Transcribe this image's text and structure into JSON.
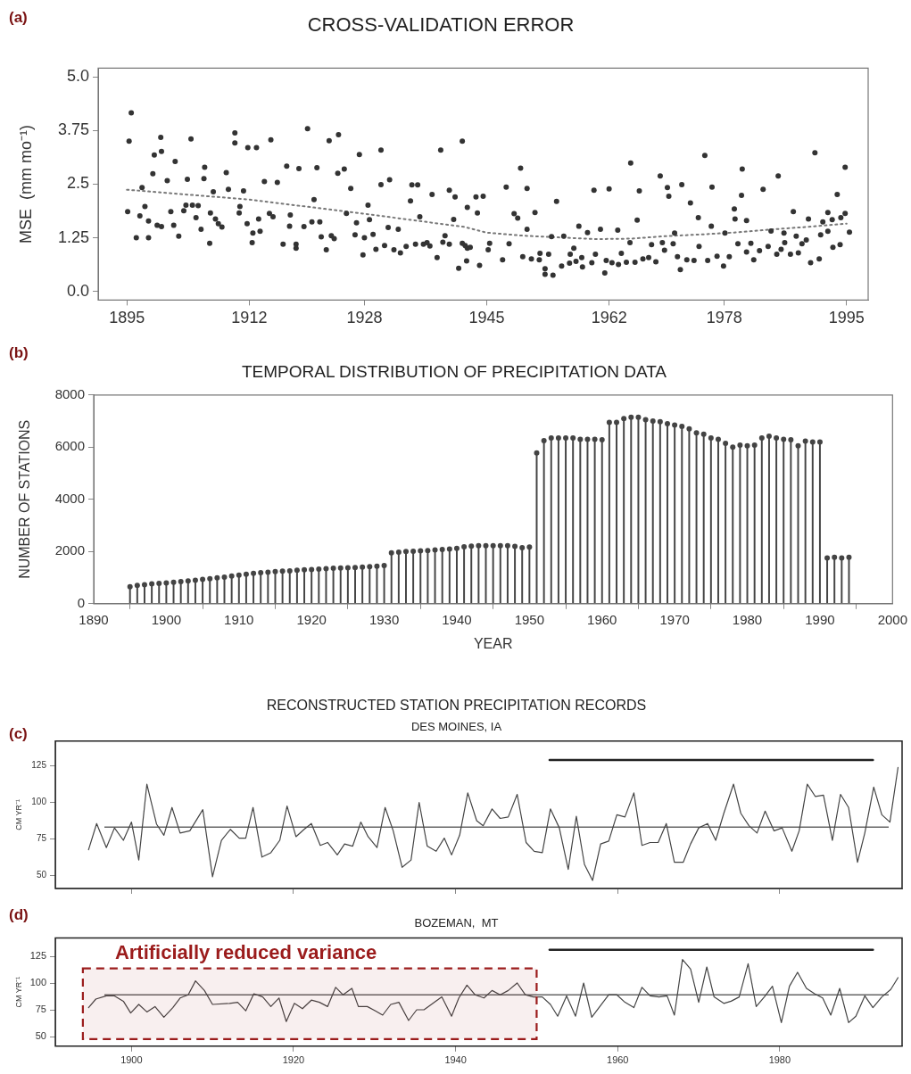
{
  "chart_data": [
    {
      "type": "scatter",
      "title": "CROSS-VALIDATION ERROR",
      "ylabel": "MSE  (mm mo⁻¹)",
      "annotations": [
        "(a)"
      ],
      "marker": "circle",
      "xlim": [
        1891,
        1998
      ],
      "xticks": [
        1895,
        1912,
        1928,
        1945,
        1962,
        1978,
        1995
      ],
      "ylim": [
        -0.2,
        5.2
      ],
      "yticks": [
        {
          "value": 0,
          "label": "0.0"
        },
        1.25,
        2.5,
        3.75,
        {
          "value": 5,
          "label": "5.0"
        }
      ],
      "series": [
        {
          "color": "#333333",
          "x": [
            1895.6,
            1895.3,
            1895.1,
            1896.8,
            1896.3,
            1897.5,
            1898.0,
            1898.0,
            1897.1,
            1898.6,
            1898.8,
            1899.7,
            1899.8,
            1899.2,
            1899.8,
            1900.6,
            1901.1,
            1901.5,
            1901.7,
            1902.2,
            1902.9,
            1903.2,
            1903.4,
            1903.9,
            1904.1,
            1904.6,
            1904.9,
            1905.3,
            1905.7,
            1905.8,
            1906.5,
            1906.6,
            1907.0,
            1907.3,
            1907.7,
            1908.2,
            1908.8,
            1909.1,
            1910.0,
            1910.0,
            1910.7,
            1910.6,
            1911.2,
            1911.7,
            1911.8,
            1912.4,
            1912.5,
            1913.0,
            1913.3,
            1913.5,
            1914.1,
            1914.8,
            1915.0,
            1915.3,
            1915.9,
            1916.7,
            1917.2,
            1917.6,
            1917.7,
            1918.5,
            1918.5,
            1918.9,
            1919.6,
            1920.1,
            1920.7,
            1921.0,
            1921.4,
            1921.8,
            1922.0,
            1922.7,
            1923.1,
            1923.4,
            1923.8,
            1924.3,
            1924.4,
            1925.2,
            1925.5,
            1926.1,
            1926.7,
            1926.9,
            1927.3,
            1927.8,
            1928.0,
            1928.5,
            1928.7,
            1929.2,
            1929.6,
            1930.3,
            1930.3,
            1930.8,
            1931.3,
            1931.5,
            1932.1,
            1932.7,
            1933.0,
            1933.8,
            1934.4,
            1934.6,
            1935.4,
            1935.1,
            1935.7,
            1936.2,
            1936.7,
            1937.1,
            1937.4,
            1938.1,
            1938.6,
            1938.9,
            1939.2,
            1939.8,
            1939.8,
            1940.4,
            1940.6,
            1941.1,
            1941.6,
            1941.6,
            1942.3,
            1942.2,
            1942.3,
            1942.0,
            1942.7,
            1943.5,
            1943.7,
            1944.0,
            1944.5,
            1945.2,
            1945.4,
            1947.2,
            1947.7,
            1948.1,
            1948.8,
            1949.3,
            1949.7,
            1950.0,
            1950.6,
            1950.6,
            1951.2,
            1951.7,
            1952.3,
            1952.4,
            1953.1,
            1953.1,
            1953.6,
            1954.2,
            1954.0,
            1954.7,
            1955.4,
            1955.7,
            1956.5,
            1956.6,
            1957.1,
            1957.4,
            1957.8,
            1958.2,
            1958.3,
            1959.0,
            1959.6,
            1959.9,
            1960.1,
            1960.8,
            1961.4,
            1961.6,
            1962.0,
            1962.4,
            1963.2,
            1963.3,
            1963.7,
            1964.4,
            1964.9,
            1965.0,
            1965.6,
            1965.9,
            1966.2,
            1966.7,
            1967.5,
            1967.9,
            1968.5,
            1969.1,
            1969.4,
            1969.7,
            1970.1,
            1970.3,
            1970.9,
            1971.1,
            1971.5,
            1971.9,
            1972.1,
            1972.8,
            1973.3,
            1973.8,
            1974.4,
            1974.5,
            1975.3,
            1975.7,
            1976.2,
            1976.3,
            1977.0,
            1977.9,
            1978.1,
            1978.7,
            1979.4,
            1979.5,
            1979.9,
            1980.4,
            1980.5,
            1981.1,
            1981.1,
            1981.7,
            1982.1,
            1982.9,
            1983.4,
            1984.1,
            1984.5,
            1985.3,
            1985.5,
            1985.9,
            1986.4,
            1986.3,
            1987.2,
            1987.6,
            1988.0,
            1988.3,
            1988.8,
            1989.4,
            1989.7,
            1990.0,
            1990.6,
            1991.2,
            1991.4,
            1991.7,
            1992.4,
            1992.4,
            1993.0,
            1993.1,
            1993.7,
            1994.1,
            1994.2,
            1994.8,
            1994.8,
            1995.4
          ],
          "values": [
            4.16,
            3.5,
            1.86,
            1.76,
            1.25,
            1.98,
            1.64,
            1.25,
            2.42,
            2.74,
            3.18,
            3.59,
            3.26,
            1.54,
            1.51,
            2.58,
            1.86,
            1.54,
            3.03,
            1.29,
            1.88,
            2.01,
            2.61,
            3.55,
            2.01,
            1.72,
            2.0,
            1.45,
            2.63,
            2.89,
            1.12,
            1.83,
            2.32,
            1.69,
            1.58,
            1.5,
            2.77,
            2.38,
            3.69,
            3.46,
            1.98,
            1.83,
            2.34,
            1.58,
            3.35,
            1.14,
            1.36,
            3.35,
            1.69,
            1.4,
            2.56,
            1.82,
            3.53,
            1.74,
            2.54,
            1.1,
            2.92,
            1.52,
            1.78,
            1.1,
            1.01,
            2.86,
            1.51,
            3.79,
            1.62,
            2.14,
            2.88,
            1.62,
            1.27,
            0.97,
            3.51,
            1.3,
            1.23,
            2.75,
            3.65,
            2.85,
            1.82,
            2.4,
            1.32,
            1.6,
            3.19,
            0.85,
            1.25,
            2.01,
            1.67,
            1.33,
            0.98,
            2.49,
            3.29,
            1.07,
            1.49,
            2.6,
            0.97,
            1.45,
            0.9,
            1.05,
            2.11,
            2.48,
            2.48,
            1.1,
            1.74,
            1.1,
            1.14,
            1.06,
            2.26,
            0.79,
            3.29,
            1.15,
            1.3,
            2.36,
            1.1,
            1.68,
            2.2,
            0.54,
            1.12,
            3.5,
            1.01,
            0.71,
            1.96,
            1.07,
            1.03,
            2.2,
            1.83,
            0.61,
            2.22,
            0.97,
            1.12,
            0.74,
            2.43,
            1.11,
            1.81,
            1.71,
            2.87,
            0.81,
            2.4,
            1.45,
            0.76,
            1.84,
            0.74,
            0.89,
            0.53,
            0.4,
            0.87,
            0.38,
            1.28,
            2.1,
            0.59,
            1.29,
            0.66,
            0.87,
            1.01,
            0.7,
            1.52,
            0.79,
            0.57,
            1.37,
            0.67,
            2.36,
            0.87,
            1.45,
            0.43,
            0.72,
            2.39,
            0.67,
            1.43,
            0.63,
            0.89,
            0.68,
            1.14,
            2.99,
            0.68,
            1.66,
            2.34,
            0.76,
            0.79,
            1.09,
            0.69,
            2.69,
            1.14,
            0.96,
            2.42,
            2.22,
            1.11,
            1.36,
            0.81,
            0.51,
            2.49,
            0.74,
            2.06,
            0.72,
            1.72,
            1.05,
            3.17,
            0.72,
            1.52,
            2.43,
            0.82,
            0.59,
            1.36,
            0.81,
            1.92,
            1.69,
            1.11,
            2.24,
            2.85,
            1.65,
            0.92,
            1.12,
            0.74,
            0.95,
            2.38,
            1.05,
            1.41,
            0.87,
            2.69,
            0.98,
            1.14,
            1.36,
            0.87,
            1.86,
            1.29,
            0.9,
            1.11,
            1.2,
            1.69,
            0.67,
            3.23,
            0.76,
            1.32,
            1.62,
            1.4,
            1.84,
            1.67,
            1.03,
            2.26,
            1.09,
            1.72,
            1.82,
            2.89,
            1.38
          ]
        },
        {
          "type": "line",
          "line_style": "dotted",
          "marker": "none",
          "color": "#777777",
          "x": [
            1895,
            1912,
            1928,
            1942,
            1945,
            1950,
            1955,
            1960,
            1965,
            1970,
            1975,
            1980,
            1985,
            1990,
            1995
          ],
          "values": [
            2.37,
            2.14,
            1.81,
            1.5,
            1.37,
            1.3,
            1.26,
            1.22,
            1.23,
            1.29,
            1.33,
            1.38,
            1.45,
            1.51,
            1.58
          ]
        }
      ]
    },
    {
      "type": "lollipop",
      "title": "TEMPORAL DISTRIBUTION OF PRECIPITATION DATA",
      "xlabel": "YEAR",
      "ylabel": "NUMBER OF STATIONS",
      "annotations": [
        "(b)"
      ],
      "marker": "circle",
      "color": "#444444",
      "xlim": [
        1890,
        2000
      ],
      "xticks": [
        1890,
        1900,
        1910,
        1920,
        1930,
        1940,
        1950,
        1960,
        1970,
        1980,
        1990,
        2000
      ],
      "ylim": [
        0,
        8000
      ],
      "yticks": [
        0,
        2000,
        4000,
        6000,
        8000
      ],
      "x": [
        1895,
        1896,
        1897,
        1898,
        1899,
        1900,
        1901,
        1902,
        1903,
        1904,
        1905,
        1906,
        1907,
        1908,
        1909,
        1910,
        1911,
        1912,
        1913,
        1914,
        1915,
        1916,
        1917,
        1918,
        1919,
        1920,
        1921,
        1922,
        1923,
        1924,
        1925,
        1926,
        1927,
        1928,
        1929,
        1930,
        1931,
        1932,
        1933,
        1934,
        1935,
        1936,
        1937,
        1938,
        1939,
        1940,
        1941,
        1942,
        1943,
        1944,
        1945,
        1946,
        1947,
        1948,
        1949,
        1950,
        1951,
        1952,
        1953,
        1954,
        1955,
        1956,
        1957,
        1958,
        1959,
        1960,
        1961,
        1962,
        1963,
        1964,
        1965,
        1966,
        1967,
        1968,
        1969,
        1970,
        1971,
        1972,
        1973,
        1974,
        1975,
        1976,
        1977,
        1978,
        1979,
        1980,
        1981,
        1982,
        1983,
        1984,
        1985,
        1986,
        1987,
        1988,
        1989,
        1990,
        1991,
        1992,
        1993,
        1994
      ],
      "values": [
        650,
        700,
        730,
        760,
        780,
        800,
        820,
        850,
        870,
        900,
        930,
        960,
        990,
        1020,
        1060,
        1100,
        1130,
        1160,
        1190,
        1210,
        1230,
        1250,
        1260,
        1280,
        1300,
        1310,
        1330,
        1340,
        1360,
        1370,
        1380,
        1390,
        1400,
        1420,
        1440,
        1460,
        1950,
        1980,
        2000,
        2010,
        2030,
        2040,
        2060,
        2080,
        2100,
        2120,
        2180,
        2210,
        2220,
        2220,
        2220,
        2220,
        2220,
        2200,
        2150,
        2170,
        5780,
        6250,
        6350,
        6350,
        6350,
        6350,
        6300,
        6300,
        6300,
        6280,
        6950,
        6950,
        7100,
        7150,
        7150,
        7050,
        7000,
        6980,
        6900,
        6850,
        6800,
        6700,
        6550,
        6500,
        6350,
        6300,
        6150,
        6000,
        6080,
        6050,
        6080,
        6350,
        6420,
        6350,
        6300,
        6280,
        6050,
        6230,
        6200,
        6200,
        1750,
        1780,
        1750,
        1780
      ]
    },
    {
      "type": "line",
      "title": "RECONSTRUCTED STATION PRECIPITATION RECORDS",
      "subtitle": "DES MOINES, IA",
      "ylabel": "CM YR⁻¹",
      "annotations": [
        "(c)"
      ],
      "marker": "none",
      "tick_labels": "y",
      "xlim": [
        1890.6,
        1995.1
      ],
      "xticks": [
        {
          "value": 1900,
          "label": null
        },
        {
          "value": 1920,
          "label": null
        },
        {
          "value": 1940,
          "label": null
        },
        {
          "value": 1960,
          "label": null
        },
        {
          "value": 1980,
          "label": null
        }
      ],
      "ylim": [
        41,
        142
      ],
      "yticks": [
        50,
        75,
        100,
        125
      ],
      "ref_lines": [
        {
          "axis": "y",
          "value": 83,
          "color": "#666666"
        }
      ],
      "series": [
        {
          "color": "#444444",
          "x": [
            1894.7,
            1895.7,
            1896.9,
            1897.9,
            1899.0,
            1900.0,
            1900.9,
            1901.9,
            1903.1,
            1904.0,
            1905.0,
            1906.0,
            1907.2,
            1908.8,
            1910.0,
            1911.1,
            1912.2,
            1913.3,
            1914.1,
            1915.0,
            1916.1,
            1917.2,
            1918.3,
            1919.2,
            1920.3,
            1921.3,
            1922.2,
            1923.3,
            1924.2,
            1925.4,
            1926.3,
            1927.3,
            1928.3,
            1929.2,
            1930.3,
            1931.3,
            1932.3,
            1933.4,
            1934.5,
            1935.5,
            1936.5,
            1937.6,
            1938.6,
            1939.5,
            1940.5,
            1941.5,
            1942.6,
            1943.4,
            1944.5,
            1945.5,
            1946.5,
            1947.6,
            1948.7,
            1949.7,
            1950.7,
            1951.7,
            1952.8,
            1953.9,
            1954.9,
            1955.9,
            1956.9,
            1957.9,
            1958.9,
            1959.9,
            1960.9,
            1962.0,
            1963.0,
            1964.0,
            1965.0,
            1966.0,
            1967.0,
            1968.1,
            1969.0,
            1970.0,
            1971.1,
            1972.1,
            1973.1,
            1974.3,
            1975.2,
            1976.2,
            1977.2,
            1978.2,
            1979.3,
            1980.3,
            1981.5,
            1982.4,
            1983.4,
            1984.4,
            1985.4,
            1986.5,
            1987.5,
            1988.5,
            1989.6,
            1990.5,
            1991.6,
            1992.6,
            1993.6,
            1994.6
          ],
          "values": [
            67.5,
            85.5,
            69,
            82.5,
            74,
            86.5,
            60.5,
            112.5,
            85,
            77.5,
            96.5,
            79,
            80.5,
            95,
            49,
            74,
            81.5,
            75.5,
            75.5,
            96.5,
            62.5,
            65.5,
            74,
            97.5,
            76.5,
            81.5,
            85.5,
            70.5,
            72.5,
            64,
            71.5,
            70,
            86.5,
            76.5,
            69,
            96.5,
            80.5,
            55.5,
            60.5,
            100,
            70,
            66.5,
            75.5,
            64,
            77.5,
            106.5,
            87.5,
            84,
            95.5,
            89,
            90,
            105.5,
            72.5,
            66.5,
            65.5,
            95.5,
            82.5,
            54,
            90.5,
            57.5,
            46.5,
            71.5,
            73.5,
            91.5,
            90,
            106.5,
            70.5,
            72.5,
            72.5,
            85.5,
            59,
            59,
            71.5,
            82.5,
            85.5,
            74,
            92.5,
            112.5,
            92.5,
            84,
            79,
            94,
            80.5,
            82.5,
            66.5,
            80.5,
            112.5,
            104,
            105,
            74,
            105.5,
            96.5,
            59,
            79,
            110.5,
            91.5,
            86.5,
            124
          ]
        },
        {
          "color": "#222222",
          "x": [
            1951.6,
            1991.5
          ],
          "values": [
            129,
            129
          ]
        }
      ]
    },
    {
      "type": "line",
      "title": "BOZEMAN,  MT",
      "ylabel": "CM YR⁻¹",
      "annotations": [
        "(d)"
      ],
      "marker": "none",
      "xlim": [
        1890.6,
        1995.1
      ],
      "xticks": [
        1900,
        1920,
        1940,
        1960,
        1980
      ],
      "ylim": [
        41,
        142
      ],
      "yticks": [
        50,
        75,
        100,
        125
      ],
      "ref_lines": [
        {
          "axis": "y",
          "value": 89,
          "color": "#666666"
        }
      ],
      "bands": [
        {
          "axis": "x",
          "from": 1894,
          "to": 1950,
          "label": "Artificially reduced variance",
          "color": "#9b1c1c"
        }
      ],
      "series": [
        {
          "color": "#444444",
          "x": [
            1894.7,
            1895.6,
            1896.9,
            1897.9,
            1899.0,
            1899.9,
            1900.9,
            1901.9,
            1902.9,
            1904.0,
            1905.1,
            1906.0,
            1907.0,
            1907.9,
            1909.0,
            1910.0,
            1912.1,
            1913.1,
            1914.1,
            1915.1,
            1916.2,
            1917.2,
            1918.2,
            1919.1,
            1920.1,
            1921.1,
            1922.2,
            1923.2,
            1924.2,
            1925.2,
            1926.1,
            1927.2,
            1928.0,
            1929.1,
            1930.1,
            1931.0,
            1932.0,
            1933.0,
            1934.2,
            1935.2,
            1936.1,
            1937.2,
            1938.3,
            1939.5,
            1940.4,
            1941.4,
            1942.4,
            1943.5,
            1944.5,
            1945.5,
            1946.5,
            1947.6,
            1948.6,
            1949.6,
            1950.7,
            1951.7,
            1952.6,
            1953.7,
            1954.8,
            1955.8,
            1956.8,
            1957.9,
            1958.9,
            1959.9,
            1960.9,
            1962.0,
            1963.0,
            1964.0,
            1965.1,
            1966.1,
            1967.0,
            1968.0,
            1969.0,
            1970.0,
            1971.0,
            1971.9,
            1973.1,
            1974.0,
            1975.0,
            1976.1,
            1977.1,
            1978.1,
            1979.1,
            1980.2,
            1981.2,
            1982.2,
            1983.3,
            1984.3,
            1985.3,
            1986.3,
            1987.4,
            1988.5,
            1989.4,
            1990.5,
            1991.5,
            1992.6,
            1993.7,
            1994.6
          ],
          "values": [
            77,
            85,
            88,
            88,
            83,
            72,
            80,
            73,
            78,
            68,
            77,
            86,
            89,
            102,
            93,
            80,
            81,
            82,
            74,
            90,
            87,
            78,
            86,
            64,
            81,
            76,
            84,
            82,
            78,
            96,
            89,
            95,
            78,
            78,
            74,
            70,
            80,
            82,
            65,
            75,
            75,
            81,
            87,
            69,
            86,
            98,
            89,
            86,
            93,
            89,
            93,
            100,
            89,
            87,
            87,
            80,
            69,
            88,
            69,
            100,
            68,
            79,
            89,
            89,
            82,
            77,
            96,
            88,
            87,
            88,
            70,
            122,
            113,
            82,
            115,
            87,
            81,
            83,
            87,
            118,
            78,
            87,
            97,
            63,
            97,
            110,
            95,
            90,
            86,
            70,
            95,
            63,
            69,
            88,
            77,
            87,
            94,
            105
          ]
        },
        {
          "color": "#222222",
          "x": [
            1951.6,
            1991.5
          ],
          "values": [
            131,
            131
          ]
        }
      ]
    }
  ]
}
